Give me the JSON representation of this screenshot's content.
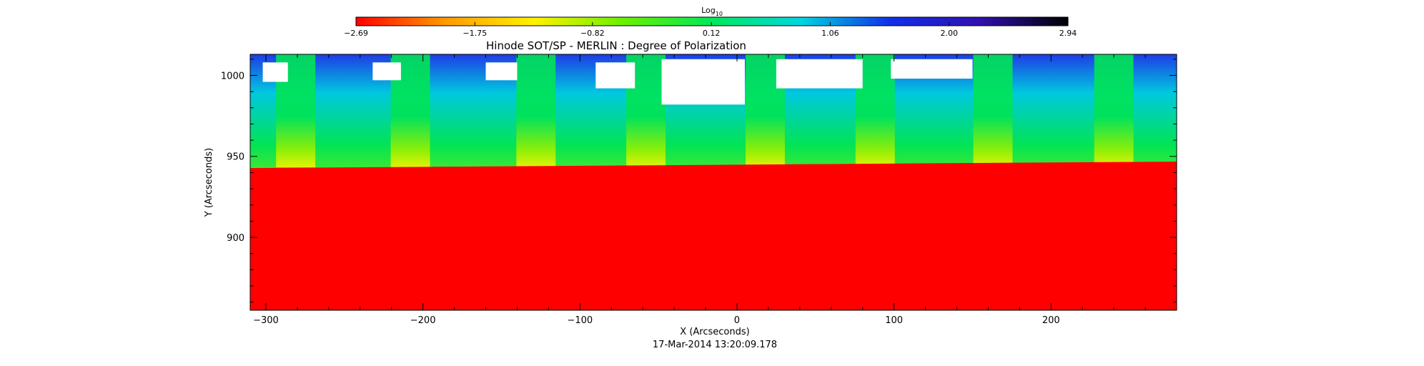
{
  "chart_data": {
    "type": "heatmap",
    "title": "Hinode SOT/SP - MERLIN : Degree of Polarization",
    "xlabel": "X (Arcseconds)",
    "ylabel": "Y (Arcseconds)",
    "timestamp": "17-Mar-2014 13:20:09.178",
    "xlim": [
      -310,
      280
    ],
    "ylim": [
      855,
      1013
    ],
    "xticks": [
      {
        "value": -300,
        "label": "−300"
      },
      {
        "value": -200,
        "label": "−200"
      },
      {
        "value": -100,
        "label": "−100"
      },
      {
        "value": 0,
        "label": "0"
      },
      {
        "value": 100,
        "label": "100"
      },
      {
        "value": 200,
        "label": "200"
      }
    ],
    "yticks": [
      {
        "value": 900,
        "label": "900"
      },
      {
        "value": 950,
        "label": "950"
      },
      {
        "value": 1000,
        "label": "1000"
      }
    ],
    "limb_y": 945,
    "colorbar": {
      "label_base": "Log",
      "label_subscript": "10",
      "min": -2.69,
      "max": 2.94,
      "ticks": [
        {
          "value": -2.69,
          "label": "−2.69"
        },
        {
          "value": -1.75,
          "label": "−1.75"
        },
        {
          "value": -0.82,
          "label": "−0.82"
        },
        {
          "value": 0.12,
          "label": "0.12"
        },
        {
          "value": 1.06,
          "label": "1.06"
        },
        {
          "value": 2.0,
          "label": "2.00"
        },
        {
          "value": 2.94,
          "label": "2.94"
        }
      ],
      "colors": [
        "#ff0000",
        "#ff9a00",
        "#fff200",
        "#6cf000",
        "#00e85a",
        "#00d6e0",
        "#1030e8",
        "#3010b0",
        "#000000"
      ]
    },
    "colors": {
      "disk": "#ff0000",
      "limb_band": "#f4f400",
      "low_corona": "#9ef000",
      "mid_corona": "#00e455",
      "upper_corona": "#00c8e0",
      "high_corona": "#1e3ce6",
      "saturated": "#ffffff"
    },
    "scan_strips": [
      {
        "x_center": -281,
        "width": 25
      },
      {
        "x_center": -208,
        "width": 25
      },
      {
        "x_center": -128,
        "width": 25
      },
      {
        "x_center": -58,
        "width": 25
      },
      {
        "x_center": 18,
        "width": 25
      },
      {
        "x_center": 88,
        "width": 25
      },
      {
        "x_center": 163,
        "width": 25
      },
      {
        "x_center": 240,
        "width": 25
      }
    ],
    "saturated_regions": [
      {
        "x0": -302,
        "x1": -286,
        "y0": 996,
        "y1": 1008
      },
      {
        "x0": -232,
        "x1": -214,
        "y0": 997,
        "y1": 1008
      },
      {
        "x0": -160,
        "x1": -140,
        "y0": 997,
        "y1": 1008
      },
      {
        "x0": -90,
        "x1": -65,
        "y0": 992,
        "y1": 1008
      },
      {
        "x0": -48,
        "x1": 5,
        "y0": 982,
        "y1": 1010
      },
      {
        "x0": 25,
        "x1": 80,
        "y0": 992,
        "y1": 1010
      },
      {
        "x0": 98,
        "x1": 150,
        "y0": 998,
        "y1": 1010
      }
    ]
  }
}
